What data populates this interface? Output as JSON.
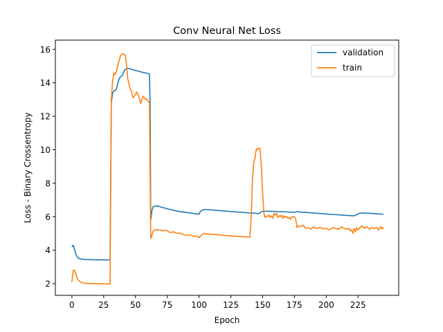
{
  "chart_data": {
    "type": "line",
    "title": "Conv Neural Net Loss",
    "xlabel": "Epoch",
    "ylabel": "Loss - Binary Crossentropy",
    "xlim": [
      -13,
      257
    ],
    "ylim": [
      1.3,
      16.55
    ],
    "xticks": [
      0,
      25,
      50,
      75,
      100,
      125,
      150,
      175,
      200,
      225
    ],
    "yticks": [
      2,
      4,
      6,
      8,
      10,
      12,
      14,
      16
    ],
    "grid": false,
    "legend_position": "top-right",
    "series": [
      {
        "name": "validation",
        "color": "#1f77b4",
        "points": [
          [
            0,
            4.2
          ],
          [
            1,
            4.3
          ],
          [
            2,
            4.05
          ],
          [
            3,
            3.8
          ],
          [
            4,
            3.62
          ],
          [
            5,
            3.53
          ],
          [
            7,
            3.47
          ],
          [
            10,
            3.44
          ],
          [
            15,
            3.43
          ],
          [
            20,
            3.42
          ],
          [
            25,
            3.42
          ],
          [
            30,
            3.42
          ],
          [
            31,
            12.8
          ],
          [
            32,
            13.4
          ],
          [
            33,
            13.5
          ],
          [
            34,
            13.55
          ],
          [
            35,
            13.6
          ],
          [
            36,
            13.95
          ],
          [
            37,
            14.2
          ],
          [
            38,
            14.35
          ],
          [
            39,
            14.4
          ],
          [
            40,
            14.45
          ],
          [
            41,
            14.7
          ],
          [
            42,
            14.8
          ],
          [
            43,
            14.85
          ],
          [
            45,
            14.85
          ],
          [
            48,
            14.78
          ],
          [
            52,
            14.7
          ],
          [
            56,
            14.62
          ],
          [
            60,
            14.55
          ],
          [
            61,
            14.5
          ],
          [
            61.5,
            12.8
          ],
          [
            62,
            5.8
          ],
          [
            63,
            6.4
          ],
          [
            64,
            6.6
          ],
          [
            66,
            6.65
          ],
          [
            68,
            6.63
          ],
          [
            70,
            6.58
          ],
          [
            75,
            6.47
          ],
          [
            80,
            6.38
          ],
          [
            85,
            6.3
          ],
          [
            90,
            6.25
          ],
          [
            95,
            6.2
          ],
          [
            100,
            6.15
          ],
          [
            101,
            6.3
          ],
          [
            102,
            6.38
          ],
          [
            104,
            6.42
          ],
          [
            106,
            6.43
          ],
          [
            110,
            6.4
          ],
          [
            115,
            6.37
          ],
          [
            120,
            6.34
          ],
          [
            125,
            6.31
          ],
          [
            130,
            6.28
          ],
          [
            135,
            6.25
          ],
          [
            140,
            6.22
          ],
          [
            145,
            6.2
          ],
          [
            147,
            6.18
          ],
          [
            148,
            6.25
          ],
          [
            150,
            6.32
          ],
          [
            155,
            6.33
          ],
          [
            160,
            6.31
          ],
          [
            165,
            6.3
          ],
          [
            170,
            6.28
          ],
          [
            175,
            6.26
          ],
          [
            177,
            6.3
          ],
          [
            180,
            6.27
          ],
          [
            185,
            6.25
          ],
          [
            190,
            6.22
          ],
          [
            195,
            6.19
          ],
          [
            200,
            6.16
          ],
          [
            205,
            6.13
          ],
          [
            210,
            6.11
          ],
          [
            215,
            6.08
          ],
          [
            220,
            6.06
          ],
          [
            222,
            6.05
          ],
          [
            224,
            6.12
          ],
          [
            226,
            6.2
          ],
          [
            230,
            6.22
          ],
          [
            235,
            6.2
          ],
          [
            240,
            6.17
          ],
          [
            245,
            6.15
          ]
        ]
      },
      {
        "name": "train",
        "color": "#ff7f0e",
        "points": [
          [
            0,
            2.1
          ],
          [
            1,
            2.8
          ],
          [
            2,
            2.8
          ],
          [
            3,
            2.6
          ],
          [
            4,
            2.35
          ],
          [
            5,
            2.2
          ],
          [
            7,
            2.08
          ],
          [
            10,
            2.02
          ],
          [
            15,
            2.0
          ],
          [
            20,
            1.99
          ],
          [
            25,
            1.99
          ],
          [
            30,
            1.99
          ],
          [
            31,
            13.0
          ],
          [
            32,
            14.1
          ],
          [
            33,
            14.6
          ],
          [
            34,
            14.5
          ],
          [
            35,
            14.7
          ],
          [
            36,
            15.0
          ],
          [
            37,
            15.3
          ],
          [
            38,
            15.55
          ],
          [
            39,
            15.7
          ],
          [
            40,
            15.72
          ],
          [
            41,
            15.7
          ],
          [
            42,
            15.65
          ],
          [
            43,
            15.0
          ],
          [
            44,
            14.2
          ],
          [
            45,
            13.9
          ],
          [
            46,
            13.6
          ],
          [
            47,
            13.5
          ],
          [
            48,
            13.1
          ],
          [
            49,
            13.2
          ],
          [
            50,
            13.3
          ],
          [
            51,
            13.45
          ],
          [
            52,
            13.3
          ],
          [
            53,
            13.1
          ],
          [
            54,
            12.75
          ],
          [
            55,
            13.0
          ],
          [
            56,
            13.2
          ],
          [
            57,
            13.1
          ],
          [
            58,
            13.0
          ],
          [
            59,
            13.05
          ],
          [
            60,
            12.9
          ],
          [
            61,
            12.8
          ],
          [
            62,
            4.7
          ],
          [
            63,
            4.9
          ],
          [
            64,
            5.15
          ],
          [
            65,
            5.2
          ],
          [
            67,
            5.22
          ],
          [
            70,
            5.2
          ],
          [
            72,
            5.15
          ],
          [
            74,
            5.2
          ],
          [
            76,
            5.1
          ],
          [
            78,
            5.05
          ],
          [
            80,
            5.1
          ],
          [
            82,
            5.0
          ],
          [
            84,
            5.02
          ],
          [
            86,
            5.0
          ],
          [
            88,
            4.92
          ],
          [
            90,
            4.88
          ],
          [
            92,
            4.92
          ],
          [
            94,
            4.88
          ],
          [
            96,
            4.82
          ],
          [
            98,
            4.85
          ],
          [
            100,
            4.75
          ],
          [
            102,
            4.9
          ],
          [
            104,
            5.0
          ],
          [
            106,
            4.97
          ],
          [
            110,
            4.95
          ],
          [
            115,
            4.92
          ],
          [
            120,
            4.88
          ],
          [
            125,
            4.85
          ],
          [
            130,
            4.82
          ],
          [
            135,
            4.8
          ],
          [
            140,
            4.78
          ],
          [
            141,
            5.9
          ],
          [
            142,
            8.3
          ],
          [
            143,
            9.2
          ],
          [
            144,
            9.5
          ],
          [
            145,
            10.05
          ],
          [
            146,
            10.0
          ],
          [
            147,
            10.1
          ],
          [
            148,
            10.05
          ],
          [
            149,
            9.0
          ],
          [
            150,
            7.4
          ],
          [
            151,
            6.2
          ],
          [
            152,
            5.95
          ],
          [
            153,
            6.05
          ],
          [
            154,
            6.0
          ],
          [
            155,
            6.1
          ],
          [
            156,
            5.95
          ],
          [
            157,
            6.05
          ],
          [
            158,
            5.9
          ],
          [
            159,
            6.2
          ],
          [
            160,
            6.1
          ],
          [
            161,
            6.2
          ],
          [
            162,
            5.95
          ],
          [
            163,
            6.05
          ],
          [
            164,
            6.0
          ],
          [
            165,
            6.1
          ],
          [
            166,
            5.9
          ],
          [
            167,
            6.05
          ],
          [
            168,
            5.95
          ],
          [
            169,
            6.0
          ],
          [
            170,
            5.9
          ],
          [
            171,
            5.95
          ],
          [
            172,
            5.85
          ],
          [
            173,
            6.0
          ],
          [
            175,
            6.0
          ],
          [
            176,
            5.85
          ],
          [
            177,
            5.35
          ],
          [
            178,
            5.45
          ],
          [
            180,
            5.4
          ],
          [
            182,
            5.5
          ],
          [
            184,
            5.3
          ],
          [
            186,
            5.35
          ],
          [
            188,
            5.25
          ],
          [
            190,
            5.4
          ],
          [
            192,
            5.3
          ],
          [
            195,
            5.35
          ],
          [
            198,
            5.28
          ],
          [
            200,
            5.3
          ],
          [
            202,
            5.2
          ],
          [
            205,
            5.35
          ],
          [
            208,
            5.28
          ],
          [
            210,
            5.25
          ],
          [
            212,
            5.4
          ],
          [
            214,
            5.3
          ],
          [
            216,
            5.25
          ],
          [
            218,
            5.3
          ],
          [
            219,
            5.15
          ],
          [
            220,
            5.2
          ],
          [
            221,
            5.0
          ],
          [
            222,
            5.3
          ],
          [
            223,
            5.1
          ],
          [
            224,
            5.35
          ],
          [
            225,
            5.2
          ],
          [
            226,
            5.3
          ],
          [
            228,
            5.45
          ],
          [
            230,
            5.3
          ],
          [
            232,
            5.4
          ],
          [
            234,
            5.25
          ],
          [
            236,
            5.35
          ],
          [
            238,
            5.3
          ],
          [
            240,
            5.35
          ],
          [
            241,
            5.2
          ],
          [
            242,
            5.3
          ],
          [
            243,
            5.4
          ],
          [
            244,
            5.25
          ],
          [
            245,
            5.38
          ]
        ]
      }
    ]
  }
}
